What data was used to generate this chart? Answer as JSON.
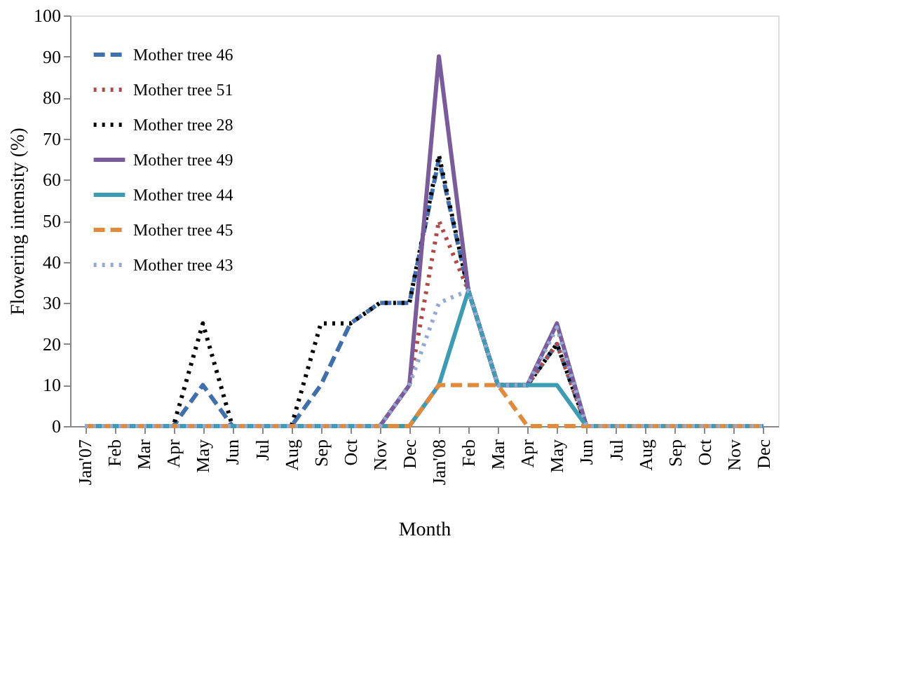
{
  "chart_data": {
    "type": "line",
    "xlabel": "Month",
    "ylabel": "Flowering intensity (%)",
    "categories": [
      "Jan'07",
      "Feb",
      "Mar",
      "Apr",
      "May",
      "Jun",
      "Jul",
      "Aug",
      "Sep",
      "Oct",
      "Nov",
      "Dec",
      "Jan'08",
      "Feb",
      "Mar",
      "Apr",
      "May",
      "Jun",
      "Jul",
      "Aug",
      "Sep",
      "Oct",
      "Nov",
      "Dec"
    ],
    "ylim": [
      0,
      100
    ],
    "yticks": [
      0,
      10,
      20,
      30,
      40,
      50,
      60,
      70,
      80,
      90,
      100
    ],
    "grid": false,
    "legend": "top left",
    "marker": "none",
    "series": [
      {
        "name": "Mother tree 46",
        "color": "#3f6fad",
        "line_style": "dashed",
        "values": [
          0,
          0,
          0,
          0,
          10,
          0,
          0,
          0,
          10,
          25,
          30,
          30,
          65,
          33,
          10,
          10,
          20,
          0,
          0,
          0,
          0,
          0,
          0,
          0
        ]
      },
      {
        "name": "Mother tree 51",
        "color": "#b04a46",
        "line_style": "dotted",
        "values": [
          null,
          null,
          null,
          null,
          null,
          null,
          null,
          null,
          null,
          null,
          0,
          10,
          50,
          33,
          10,
          10,
          20,
          0,
          null,
          null,
          null,
          null,
          null,
          null
        ]
      },
      {
        "name": "Mother tree 28",
        "color": "#000000",
        "line_style": "dotted",
        "values": [
          0,
          0,
          0,
          0,
          25,
          0,
          0,
          0,
          25,
          25,
          30,
          30,
          66,
          33,
          10,
          10,
          20,
          0,
          0,
          0,
          0,
          0,
          0,
          0
        ]
      },
      {
        "name": "Mother tree 49",
        "color": "#7a5c9c",
        "line_style": "solid",
        "values": [
          null,
          null,
          0,
          0,
          0,
          0,
          0,
          0,
          0,
          0,
          0,
          10,
          90,
          33,
          10,
          10,
          25,
          0,
          0,
          0,
          0,
          0,
          0,
          0
        ]
      },
      {
        "name": "Mother tree 44",
        "color": "#3d9cb3",
        "line_style": "solid",
        "values": [
          0,
          0,
          0,
          0,
          0,
          0,
          0,
          0,
          0,
          0,
          0,
          0,
          10,
          33,
          10,
          10,
          10,
          0,
          0,
          0,
          0,
          0,
          0,
          0
        ]
      },
      {
        "name": "Mother tree 45",
        "color": "#e08a3c",
        "line_style": "dashed",
        "values": [
          0,
          0,
          0,
          0,
          0,
          0,
          0,
          0,
          0,
          0,
          0,
          0,
          10,
          10,
          10,
          0,
          0,
          0,
          0,
          0,
          0,
          0,
          0,
          0
        ]
      },
      {
        "name": "Mother tree 43",
        "color": "#93a9d4",
        "line_style": "dotted",
        "values": [
          0,
          0,
          0,
          0,
          0,
          0,
          0,
          0,
          0,
          0,
          0,
          10,
          30,
          33,
          10,
          10,
          24,
          0,
          0,
          0,
          0,
          0,
          0,
          0
        ]
      }
    ]
  }
}
